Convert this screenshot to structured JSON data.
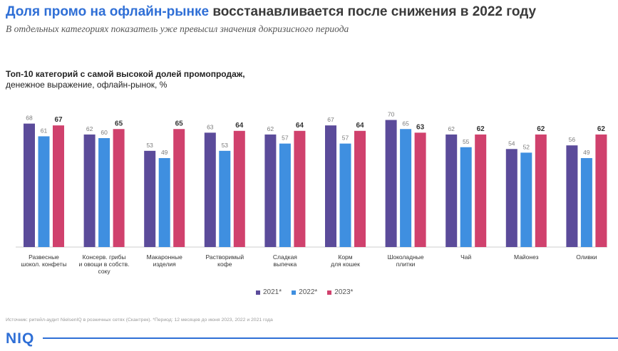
{
  "header": {
    "title_accent": "Доля промо на офлайн-рынке",
    "title_rest": " восстанавливается после снижения в 2022 году",
    "subtitle": "В отдельных категориях показатель уже превысил значения докризисного периода"
  },
  "chart_heading": {
    "line1": "Топ-10 категорий с самой высокой долей промопродаж,",
    "line2": "денежное выражение, офлайн-рынок, %"
  },
  "legend": {
    "items": [
      {
        "label": "2021*",
        "color": "#5b4b9a"
      },
      {
        "label": "2022*",
        "color": "#3f8fe0"
      },
      {
        "label": "2023*",
        "color": "#d0416d"
      }
    ]
  },
  "footnote": "Источник: ритейл-аудит NielsenIQ в розничных сетях (Скантрек). *Период: 12 месяцев до июня 2023, 2022 и 2021 года",
  "logo": "NIQ",
  "chart_data": {
    "type": "bar",
    "title": "Топ-10 категорий с самой высокой долей промопродаж, денежное выражение, офлайн-рынок, %",
    "categories": [
      [
        "Развесные",
        "шокол. конфеты"
      ],
      [
        "Консерв. грибы",
        "и овощи в собств.",
        "соку"
      ],
      [
        "Макаронные",
        "изделия"
      ],
      [
        "Растворимый",
        "кофе"
      ],
      [
        "Сладкая",
        "выпечка"
      ],
      [
        "Корм",
        "для кошек"
      ],
      [
        "Шоколадные",
        "плитки"
      ],
      [
        "Чай"
      ],
      [
        "Майонез"
      ],
      [
        "Оливки"
      ]
    ],
    "series": [
      {
        "name": "2021*",
        "color": "#5b4b9a",
        "values": [
          68,
          62,
          53,
          63,
          62,
          67,
          70,
          62,
          54,
          56
        ]
      },
      {
        "name": "2022*",
        "color": "#3f8fe0",
        "values": [
          61,
          60,
          49,
          53,
          57,
          57,
          65,
          55,
          52,
          49
        ]
      },
      {
        "name": "2023*",
        "color": "#d0416d",
        "values": [
          67,
          65,
          65,
          64,
          64,
          64,
          63,
          62,
          62,
          62
        ]
      }
    ],
    "ylim": [
      0,
      70
    ],
    "grid": false,
    "legend_position": "bottom"
  }
}
